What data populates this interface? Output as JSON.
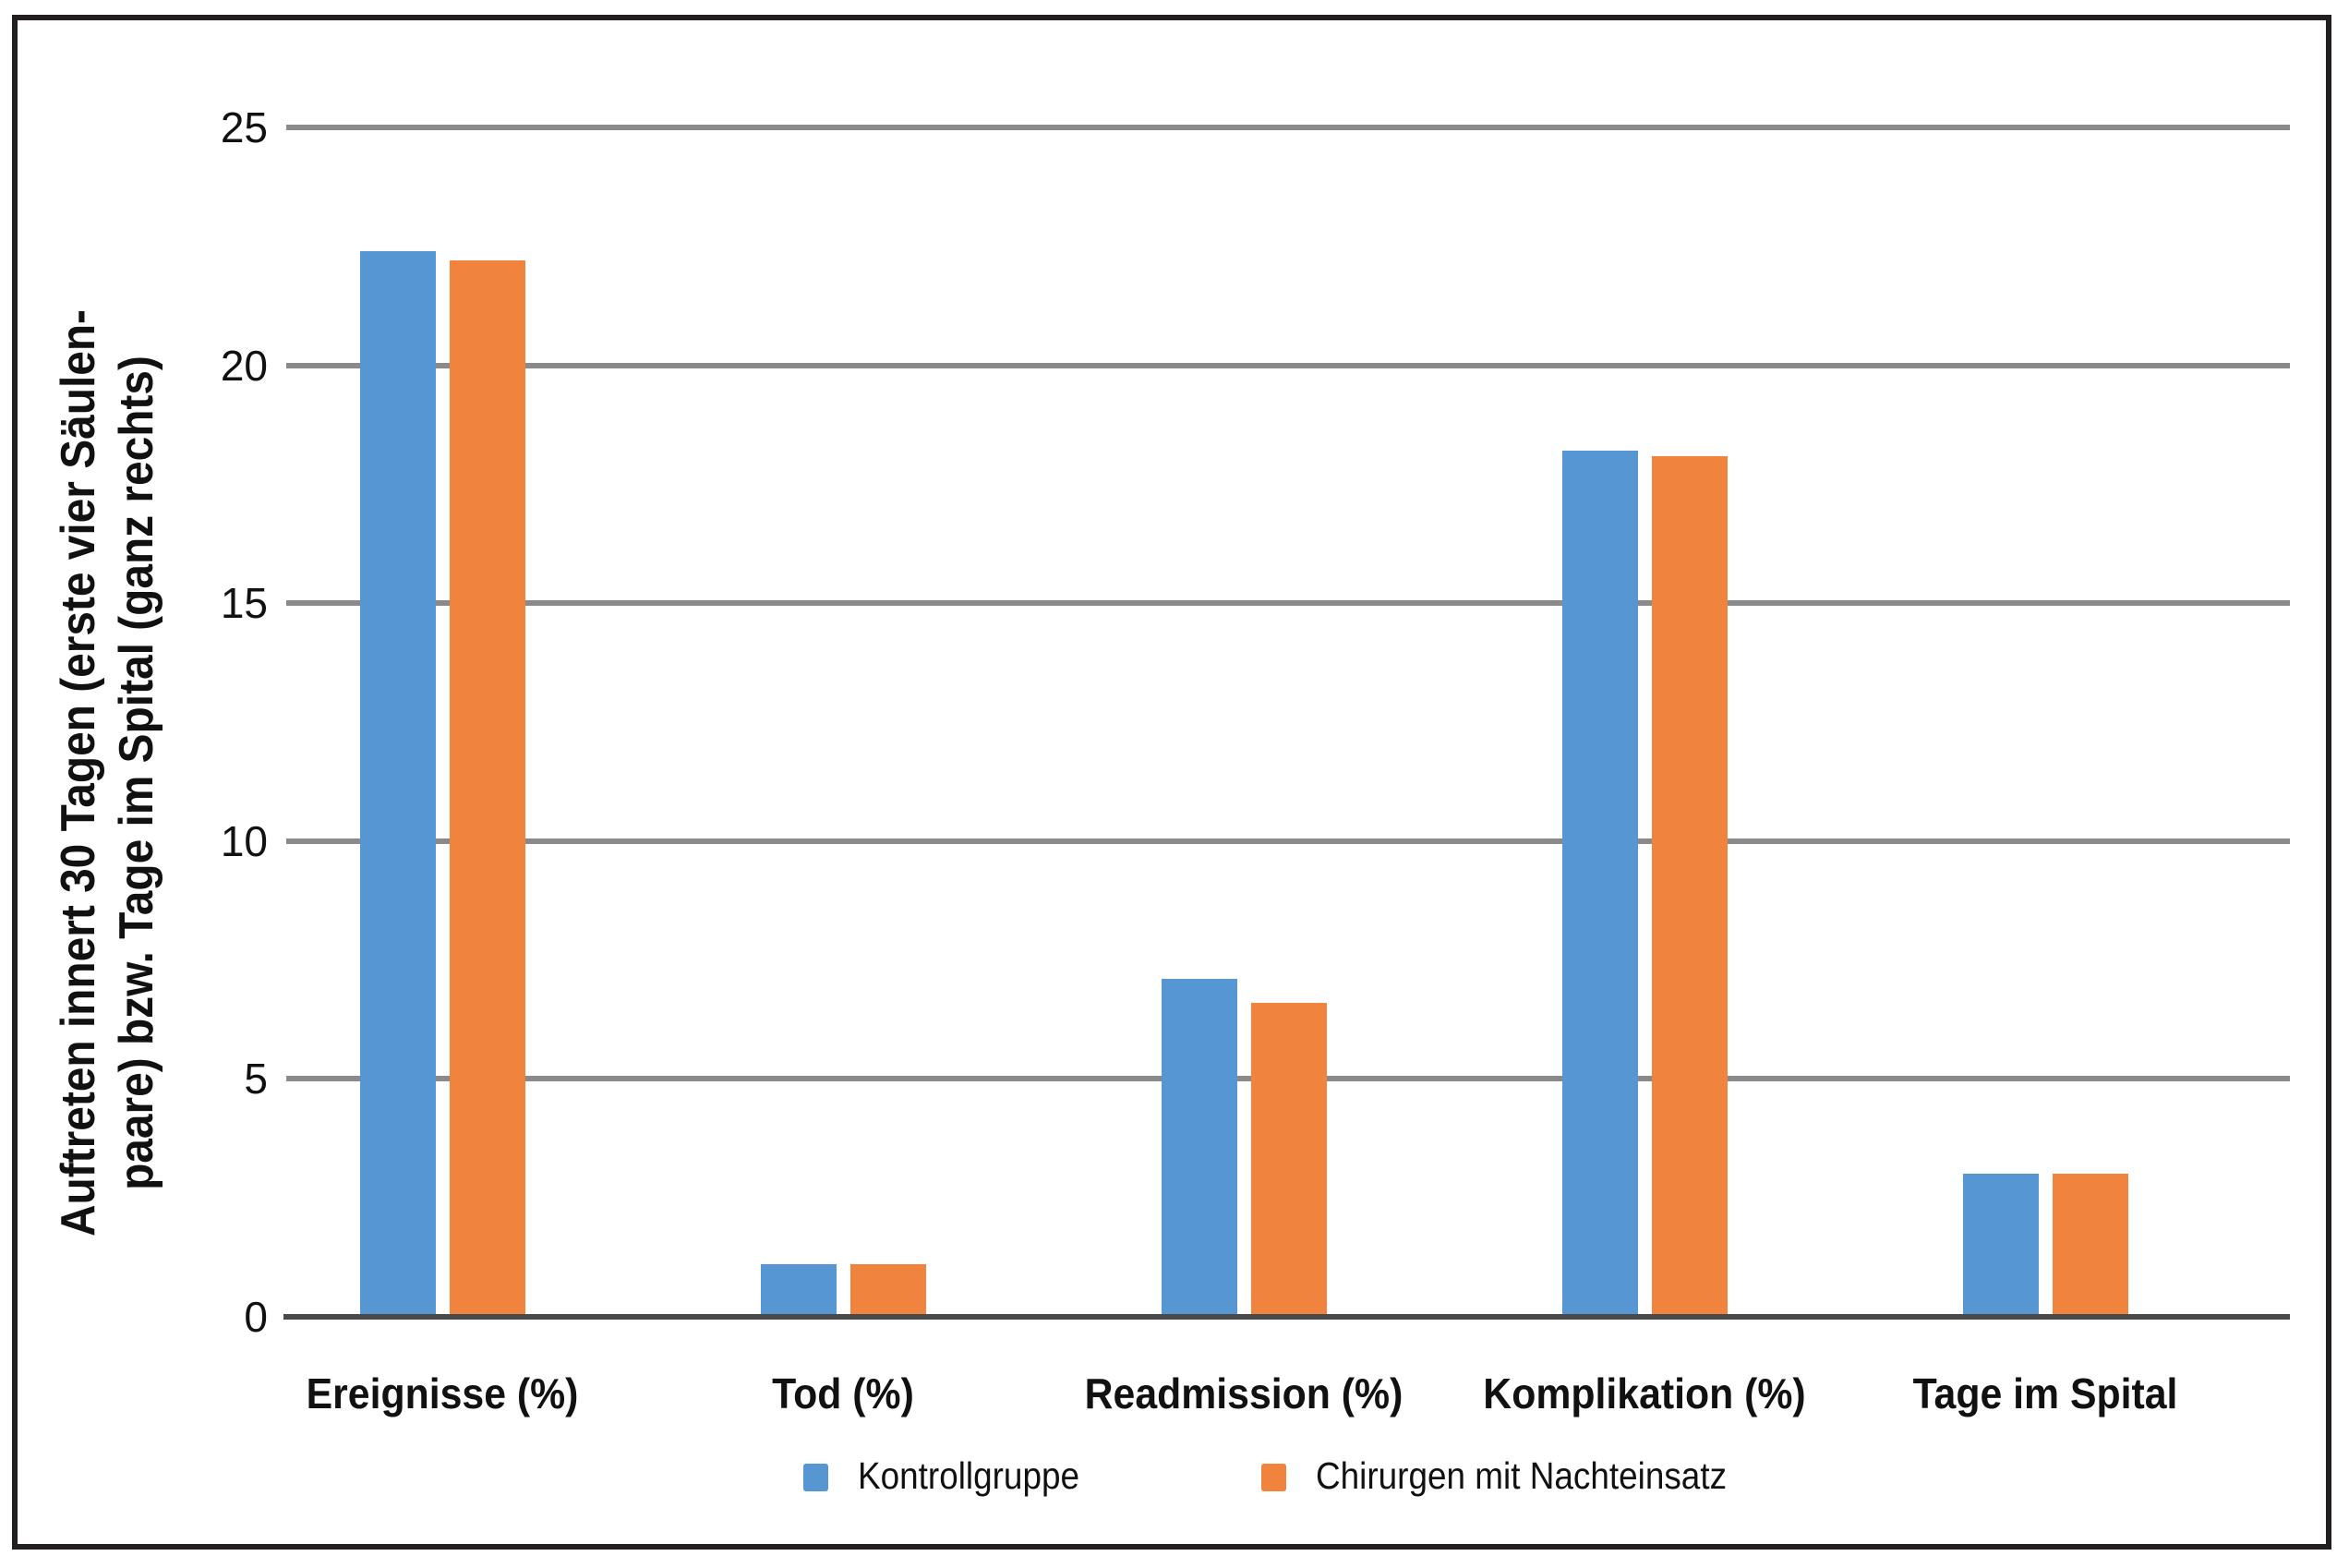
{
  "figure": {
    "background_color": "#ffffff",
    "border_color": "#231f20"
  },
  "chart_data": {
    "type": "bar",
    "categories": [
      "Ereignisse (%)",
      "Tod (%)",
      "Readmission (%)",
      "Komplikation (%)",
      "Tage im Spital"
    ],
    "series": [
      {
        "name": "Kontrollgruppe",
        "color": "#5596d3",
        "values": [
          22.4,
          1.1,
          7.1,
          18.2,
          3.0
        ]
      },
      {
        "name": "Chirurgen mit Nachteinsatz",
        "color": "#f0843f",
        "values": [
          22.2,
          1.1,
          6.6,
          18.1,
          3.0
        ]
      }
    ],
    "title": "",
    "xlabel": "",
    "ylabel_line1": "Auftreten innert 30 Tagen (erste vier Säulen-",
    "ylabel_line2": "paare) bzw. Tage im Spital (ganz rechts)",
    "yticks": [
      0,
      5,
      10,
      15,
      20,
      25
    ],
    "ylim": [
      0,
      25
    ],
    "grid": "horizontal gridlines at 5,10,15,20,25",
    "gridline_color": "#8a8a8a",
    "axis_color": "#4a4a4a",
    "legend_position": "bottom-center"
  }
}
